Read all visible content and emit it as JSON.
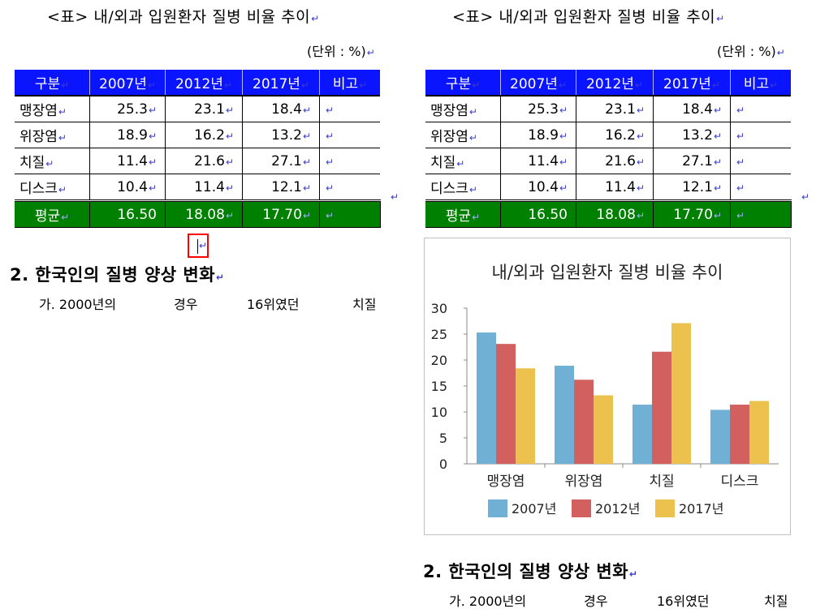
{
  "caption": "<표> 내/외과 입원환자 질병 비율 추이",
  "unit_note": "(단위 : %)",
  "paragraph_mark": "↵",
  "table": {
    "headers": [
      "구분",
      "2007년",
      "2012년",
      "2017년",
      "비고"
    ],
    "rows": [
      {
        "label": "맹장염",
        "v2007": "25.3",
        "v2012": "23.1",
        "v2017": "18.4"
      },
      {
        "label": "위장염",
        "v2007": "18.9",
        "v2012": "16.2",
        "v2017": "13.2"
      },
      {
        "label": "치질",
        "v2007": "11.4",
        "v2012": "21.6",
        "v2017": "27.1"
      },
      {
        "label": "디스크",
        "v2007": "10.4",
        "v2012": "11.4",
        "v2017": "12.1"
      }
    ],
    "average": {
      "label": "평균",
      "v2007": "16.50",
      "v2012": "18.08",
      "v2017": "17.70"
    }
  },
  "section_heading": "2. 한국인의 질병 양상 변화",
  "sub_item": {
    "prefix": "가. 2000년의",
    "word2": "경우",
    "word3": "16위였던",
    "word4": "치질"
  },
  "colors": {
    "header_bg": "#0a14ff",
    "average_bg": "#008000",
    "cursor_box": "#ff0000"
  },
  "chart_data": {
    "type": "bar",
    "title": "내/외과 입원환자 질병 비율 추이",
    "categories": [
      "맹장염",
      "위장염",
      "치질",
      "디스크"
    ],
    "series": [
      {
        "name": "2007년",
        "values": [
          25.3,
          18.9,
          11.4,
          10.4
        ],
        "color": "#6fb0d4"
      },
      {
        "name": "2012년",
        "values": [
          23.1,
          16.2,
          21.6,
          11.4
        ],
        "color": "#d1605e"
      },
      {
        "name": "2017년",
        "values": [
          18.4,
          13.2,
          27.1,
          12.1
        ],
        "color": "#ecc14e"
      }
    ],
    "ylim": [
      0,
      30
    ],
    "yticks": [
      0,
      5,
      10,
      15,
      20,
      25,
      30
    ],
    "legend": "bottom",
    "grid": false
  }
}
